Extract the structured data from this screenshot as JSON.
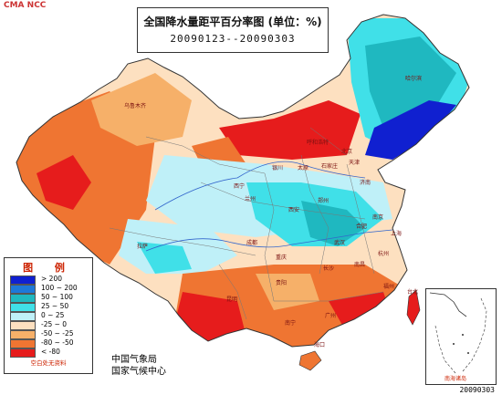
{
  "header": {
    "corner_label": "CMA NCC",
    "title": "全国降水量距平百分率图 (单位：%)",
    "date_range": "20090123--20090303",
    "date_stamp": "20090303"
  },
  "legend": {
    "title": "图 例",
    "items": [
      {
        "label": "> 200",
        "color": "#1020d0"
      },
      {
        "label": "100 ~ 200",
        "color": "#1e78d8"
      },
      {
        "label": "50 ~ 100",
        "color": "#1fb8c0"
      },
      {
        "label": "25 ~ 50",
        "color": "#40e0e8"
      },
      {
        "label": "0 ~ 25",
        "color": "#bff0f8"
      },
      {
        "label": "-25 ~ 0",
        "color": "#fde0c0"
      },
      {
        "label": "-50 ~ -25",
        "color": "#f6b069"
      },
      {
        "label": "-80 ~ -50",
        "color": "#ef7532"
      },
      {
        "label": "< -80",
        "color": "#e61c1c"
      }
    ],
    "note": "空白处无资料"
  },
  "agency": {
    "line1": "中国气象局",
    "line2": "国家气候中心"
  },
  "inset": {
    "label": "南海诸岛"
  },
  "cities": [
    {
      "name": "乌鲁木齐"
    },
    {
      "name": "哈尔滨"
    },
    {
      "name": "呼和浩特"
    },
    {
      "name": "北京"
    },
    {
      "name": "天津"
    },
    {
      "name": "石家庄"
    },
    {
      "name": "太原"
    },
    {
      "name": "济南"
    },
    {
      "name": "西宁"
    },
    {
      "name": "兰州"
    },
    {
      "name": "银川"
    },
    {
      "name": "西安"
    },
    {
      "name": "郑州"
    },
    {
      "name": "南京"
    },
    {
      "name": "合肥"
    },
    {
      "name": "上海"
    },
    {
      "name": "武汉"
    },
    {
      "name": "杭州"
    },
    {
      "name": "成都"
    },
    {
      "name": "重庆"
    },
    {
      "name": "长沙"
    },
    {
      "name": "南昌"
    },
    {
      "name": "福州"
    },
    {
      "name": "贵阳"
    },
    {
      "name": "昆明"
    },
    {
      "name": "南宁"
    },
    {
      "name": "广州"
    },
    {
      "name": "台北"
    },
    {
      "name": "海口"
    },
    {
      "name": "拉萨"
    }
  ]
}
